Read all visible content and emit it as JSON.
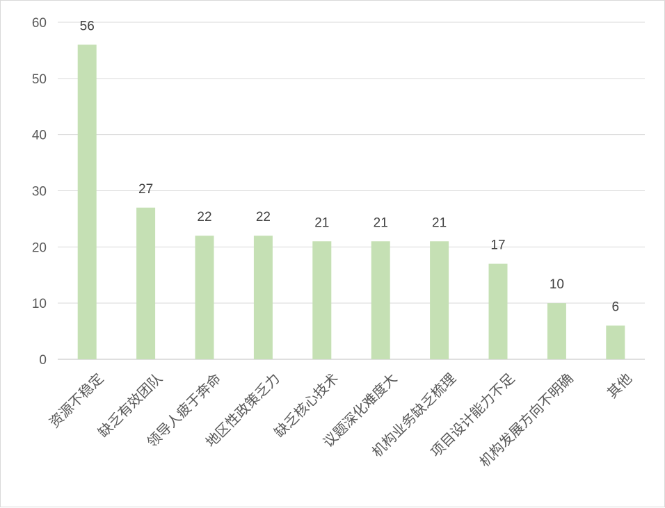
{
  "chart_data": {
    "type": "bar",
    "title": "",
    "xlabel": "",
    "ylabel": "",
    "categories": [
      "资源不稳定",
      "缺乏有效团队",
      "领导人疲于奔命",
      "地区性政策乏力",
      "缺乏核心技术",
      "议题深化难度大",
      "机构业务缺乏梳理",
      "项目设计能力不足",
      "机构发展方向不明确",
      "其他"
    ],
    "values": [
      56,
      27,
      22,
      22,
      21,
      21,
      21,
      17,
      10,
      6
    ],
    "data_labels": [
      "56",
      "27",
      "22",
      "22",
      "21",
      "21",
      "21",
      "17",
      "10",
      "6"
    ],
    "y_ticks": [
      "0",
      "10",
      "20",
      "30",
      "40",
      "50",
      "60"
    ],
    "ylim": [
      0,
      60
    ],
    "grid": true,
    "legend": "none",
    "bar_color": "#c5e0b4",
    "grid_color": "#d9d9d9",
    "axis_color": "#bfbfbf"
  }
}
